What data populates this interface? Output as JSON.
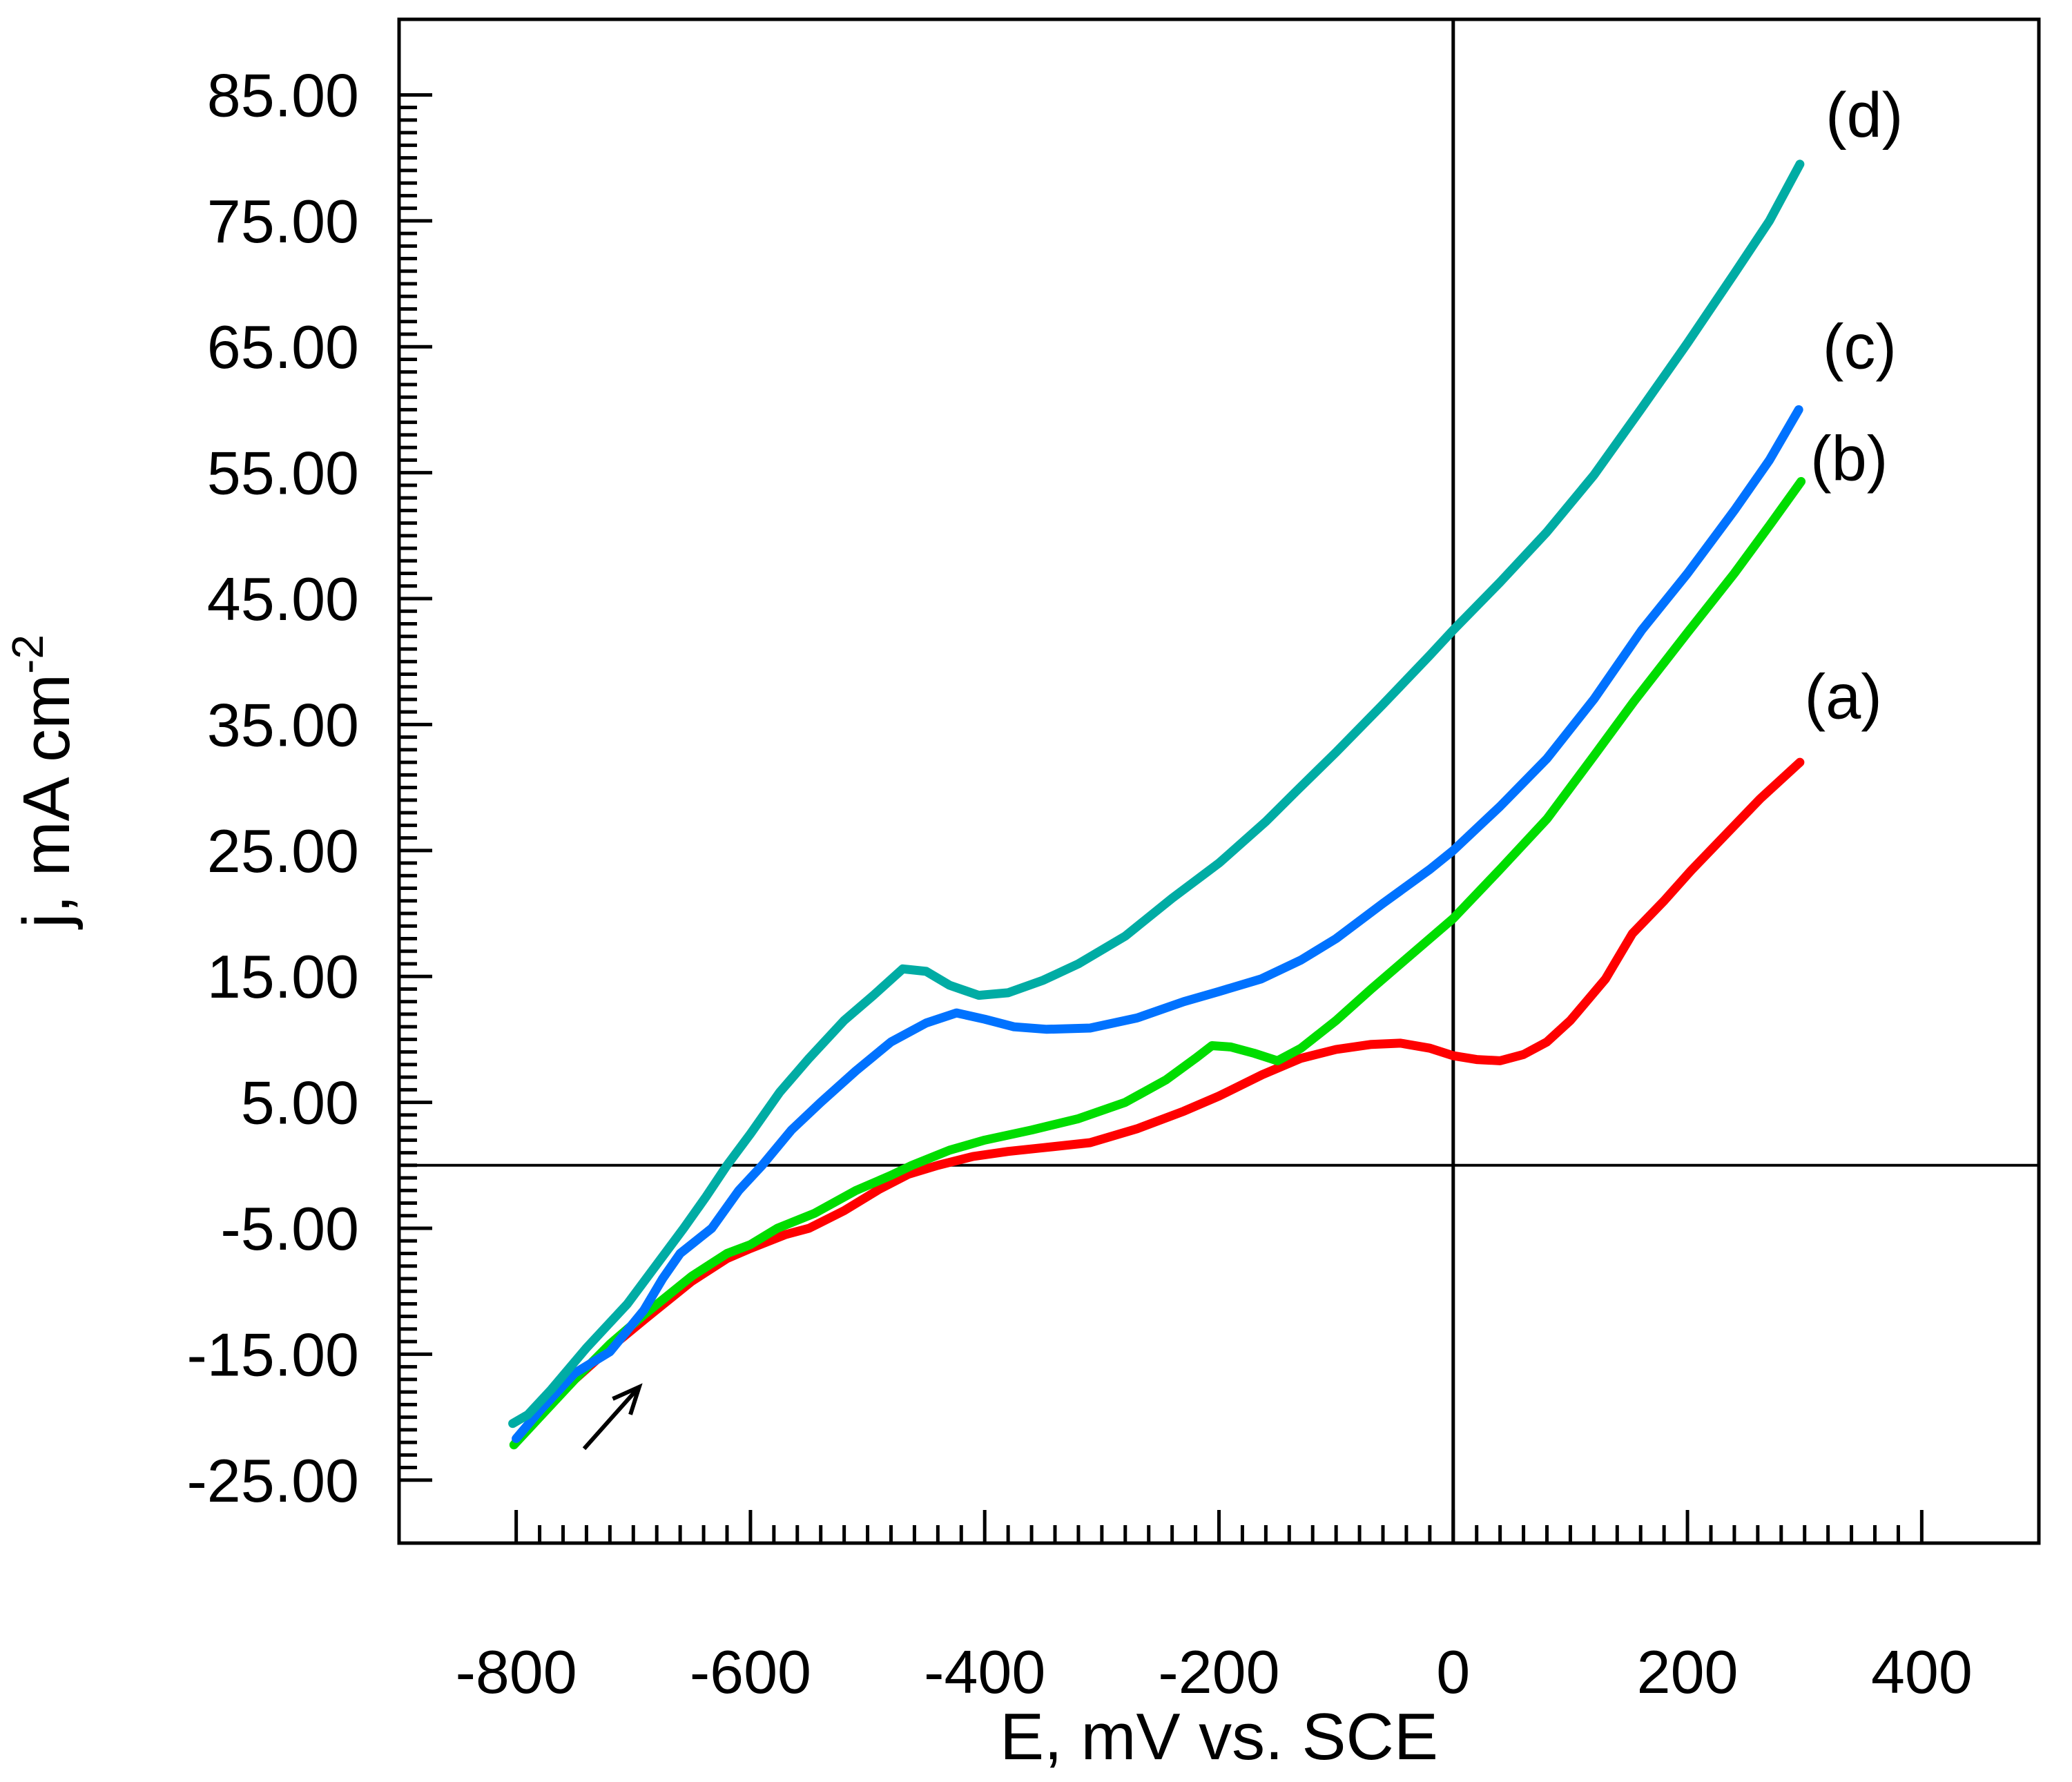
{
  "figure": {
    "background": "#ffffff",
    "axis_color": "#000000"
  },
  "chart_data": {
    "type": "line",
    "title": "",
    "xlabel": "E, mV vs. SCE",
    "ylabel": "j, mA cm⁻²",
    "ylabel_main": "j, mA cm",
    "ylabel_superscript": "-2",
    "xlim": [
      -900,
      500
    ],
    "ylim": [
      -30,
      91
    ],
    "x_major_ticks": [
      -800,
      -600,
      -400,
      -200,
      0,
      200,
      400
    ],
    "x_tick_labels": [
      "-800",
      "-600",
      "-400",
      "-200",
      "0",
      "200",
      "400"
    ],
    "x_minor_step": 20,
    "x_minor_range": [
      -800,
      400
    ],
    "y_major_ticks": [
      85,
      75,
      65,
      55,
      45,
      35,
      25,
      15,
      5,
      -5,
      -15,
      -25
    ],
    "y_tick_labels": [
      "85.00",
      "75.00",
      "65.00",
      "55.00",
      "45.00",
      "35.00",
      "25.00",
      "15.00",
      "5.00",
      "-5.00",
      "-15.00",
      "-25.00"
    ],
    "y_minor_step": 1,
    "y_minor_range": [
      -25,
      85
    ],
    "grid": false,
    "legend_position": "curve-labels-inside-top-right",
    "reference_lines": {
      "vertical_at_E": 0,
      "horizontal_at_j": 0
    },
    "series": [
      {
        "name": "(a)",
        "color": "#ff0000",
        "points": [
          [
            -800,
            -21.9
          ],
          [
            -780,
            -19.9
          ],
          [
            -750,
            -17.0
          ],
          [
            -720,
            -14.5
          ],
          [
            -690,
            -12.2
          ],
          [
            -650,
            -9.2
          ],
          [
            -620,
            -7.4
          ],
          [
            -600,
            -6.6
          ],
          [
            -570,
            -5.5
          ],
          [
            -550,
            -5.0
          ],
          [
            -520,
            -3.6
          ],
          [
            -490,
            -1.9
          ],
          [
            -465,
            -0.7
          ],
          [
            -440,
            0.0
          ],
          [
            -410,
            0.7
          ],
          [
            -380,
            1.1
          ],
          [
            -350,
            1.4
          ],
          [
            -310,
            1.8
          ],
          [
            -270,
            2.9
          ],
          [
            -230,
            4.3
          ],
          [
            -200,
            5.5
          ],
          [
            -163,
            7.2
          ],
          [
            -130,
            8.5
          ],
          [
            -100,
            9.2
          ],
          [
            -70,
            9.6
          ],
          [
            -45,
            9.7
          ],
          [
            -20,
            9.3
          ],
          [
            0,
            8.7
          ],
          [
            20,
            8.4
          ],
          [
            40,
            8.3
          ],
          [
            60,
            8.8
          ],
          [
            80,
            9.8
          ],
          [
            100,
            11.5
          ],
          [
            130,
            14.8
          ],
          [
            153,
            18.4
          ],
          [
            180,
            21.0
          ],
          [
            203,
            23.4
          ],
          [
            232,
            26.2
          ],
          [
            262,
            29.1
          ],
          [
            296,
            32.0
          ]
        ]
      },
      {
        "name": "(b)",
        "color": "#00dd00",
        "points": [
          [
            -802,
            -22.2
          ],
          [
            -780,
            -20.0
          ],
          [
            -750,
            -17.0
          ],
          [
            -720,
            -14.2
          ],
          [
            -690,
            -11.8
          ],
          [
            -650,
            -8.8
          ],
          [
            -620,
            -7.0
          ],
          [
            -600,
            -6.3
          ],
          [
            -577,
            -5.0
          ],
          [
            -545,
            -3.8
          ],
          [
            -510,
            -2.0
          ],
          [
            -480,
            -0.8
          ],
          [
            -462,
            0.0
          ],
          [
            -430,
            1.2
          ],
          [
            -400,
            2.0
          ],
          [
            -360,
            2.8
          ],
          [
            -320,
            3.7
          ],
          [
            -280,
            5.0
          ],
          [
            -245,
            6.8
          ],
          [
            -220,
            8.5
          ],
          [
            -206,
            9.5
          ],
          [
            -190,
            9.4
          ],
          [
            -170,
            8.9
          ],
          [
            -150,
            8.3
          ],
          [
            -130,
            9.3
          ],
          [
            -100,
            11.5
          ],
          [
            -70,
            14.0
          ],
          [
            -40,
            16.4
          ],
          [
            0,
            19.6
          ],
          [
            40,
            23.5
          ],
          [
            80,
            27.5
          ],
          [
            120,
            32.5
          ],
          [
            154,
            36.8
          ],
          [
            200,
            42.3
          ],
          [
            240,
            47.0
          ],
          [
            270,
            50.8
          ],
          [
            297,
            54.3
          ]
        ]
      },
      {
        "name": "(c)",
        "color": "#0072ff",
        "points": [
          [
            -800,
            -21.7
          ],
          [
            -780,
            -19.5
          ],
          [
            -750,
            -16.5
          ],
          [
            -720,
            -14.8
          ],
          [
            -691,
            -11.5
          ],
          [
            -675,
            -9.0
          ],
          [
            -660,
            -7.0
          ],
          [
            -633,
            -5.0
          ],
          [
            -610,
            -2.0
          ],
          [
            -590,
            0.0
          ],
          [
            -565,
            2.8
          ],
          [
            -540,
            5.0
          ],
          [
            -510,
            7.5
          ],
          [
            -480,
            9.8
          ],
          [
            -450,
            11.3
          ],
          [
            -424,
            12.1
          ],
          [
            -400,
            11.6
          ],
          [
            -375,
            11.0
          ],
          [
            -347,
            10.8
          ],
          [
            -310,
            10.9
          ],
          [
            -270,
            11.7
          ],
          [
            -230,
            13.0
          ],
          [
            -200,
            13.8
          ],
          [
            -164,
            14.8
          ],
          [
            -130,
            16.3
          ],
          [
            -100,
            18.0
          ],
          [
            -60,
            20.8
          ],
          [
            -20,
            23.5
          ],
          [
            0,
            25.0
          ],
          [
            40,
            28.5
          ],
          [
            80,
            32.3
          ],
          [
            120,
            37.0
          ],
          [
            161,
            42.5
          ],
          [
            200,
            47.0
          ],
          [
            240,
            52.0
          ],
          [
            270,
            56.0
          ],
          [
            295,
            60.0
          ]
        ]
      },
      {
        "name": "(d)",
        "color": "#00aca4",
        "points": [
          [
            -803,
            -20.5
          ],
          [
            -790,
            -19.8
          ],
          [
            -770,
            -17.8
          ],
          [
            -740,
            -14.5
          ],
          [
            -705,
            -11.0
          ],
          [
            -657,
            -5.0
          ],
          [
            -638,
            -2.5
          ],
          [
            -620,
            0.0
          ],
          [
            -600,
            2.5
          ],
          [
            -575,
            5.8
          ],
          [
            -550,
            8.5
          ],
          [
            -520,
            11.5
          ],
          [
            -495,
            13.5
          ],
          [
            -470,
            15.6
          ],
          [
            -450,
            15.4
          ],
          [
            -430,
            14.3
          ],
          [
            -405,
            13.5
          ],
          [
            -380,
            13.7
          ],
          [
            -350,
            14.7
          ],
          [
            -320,
            16.0
          ],
          [
            -280,
            18.2
          ],
          [
            -240,
            21.2
          ],
          [
            -200,
            24.0
          ],
          [
            -160,
            27.3
          ],
          [
            -133,
            29.8
          ],
          [
            -100,
            32.8
          ],
          [
            -60,
            36.6
          ],
          [
            -20,
            40.5
          ],
          [
            0,
            42.5
          ],
          [
            40,
            46.3
          ],
          [
            80,
            50.3
          ],
          [
            120,
            54.8
          ],
          [
            160,
            60.0
          ],
          [
            200,
            65.3
          ],
          [
            240,
            70.8
          ],
          [
            270,
            75.0
          ],
          [
            296,
            79.5
          ]
        ]
      }
    ],
    "annotations": {
      "curve_labels": [
        {
          "text": "(d)",
          "E": 351,
          "j": 83.5
        },
        {
          "text": "(c)",
          "E": 347,
          "j": 65.1
        },
        {
          "text": "(b)",
          "E": 338,
          "j": 56.2
        },
        {
          "text": "(a)",
          "E": 333,
          "j": 37.3
        }
      ],
      "scan_direction_arrow": {
        "from_E": -742,
        "from_j": -22.5,
        "to_E": -695,
        "to_j": -17.6
      }
    }
  }
}
